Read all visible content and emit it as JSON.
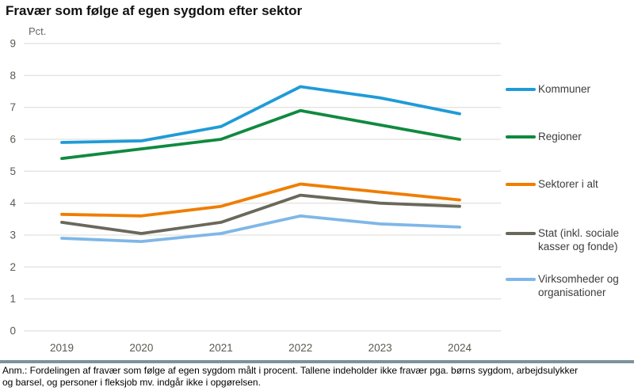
{
  "title": "Fravær som følge af egen sygdom efter sektor",
  "axis": {
    "unit_label": "Pct."
  },
  "footnote": "Anm.: Fordelingen af fravær som følge af egen sygdom målt i procent. Tallene indeholder ikke fravær pga. børns sygdom, arbejdsulykker og barsel, og personer i fleksjob mv. indgår ikke i opgørelsen.",
  "divider_color": "#7d929b",
  "chart_data": {
    "type": "line",
    "title": "Fravær som følge af egen sygdom efter sektor",
    "xlabel": "",
    "ylabel": "Pct.",
    "categories": [
      "2019",
      "2020",
      "2021",
      "2022",
      "2023",
      "2024"
    ],
    "series": [
      {
        "name": "Kommuner",
        "color": "#1f9bd8",
        "values": [
          5.9,
          5.95,
          6.4,
          7.65,
          7.3,
          6.8
        ]
      },
      {
        "name": "Regioner",
        "color": "#0f8a3f",
        "values": [
          5.4,
          5.7,
          6.0,
          6.9,
          6.45,
          6.0
        ]
      },
      {
        "name": "Sektorer i alt",
        "color": "#ef7d00",
        "values": [
          3.65,
          3.6,
          3.9,
          4.6,
          4.35,
          4.1
        ]
      },
      {
        "name": "Stat (inkl. sociale kasser og fonde)",
        "color": "#6a685b",
        "values": [
          3.4,
          3.05,
          3.4,
          4.25,
          4.0,
          3.9
        ]
      },
      {
        "name": "Virksomheder og organisationer",
        "color": "#7fb7e7",
        "values": [
          2.9,
          2.8,
          3.05,
          3.6,
          3.35,
          3.25
        ]
      }
    ],
    "ylim": [
      0,
      9
    ],
    "y_ticks": [
      0,
      1,
      2,
      3,
      4,
      5,
      6,
      7,
      8,
      9
    ],
    "grid": "horizontal",
    "gridline_color": "#d9d9d4",
    "legend_position": "right"
  }
}
